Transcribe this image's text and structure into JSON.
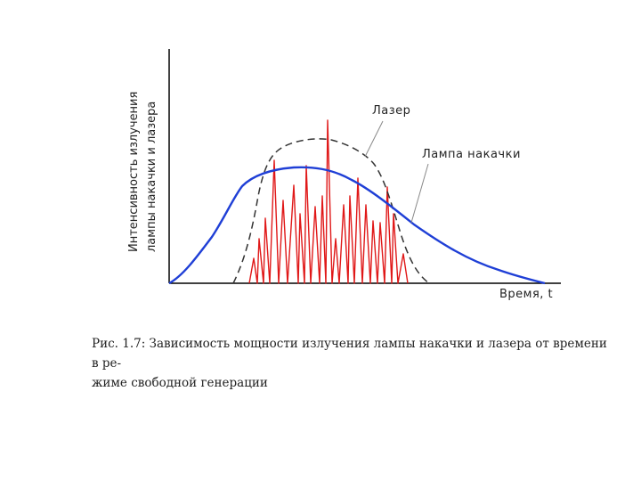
{
  "axes": {
    "ylabel_line1": "Интенсивность излучения",
    "ylabel_line2": "лампы накачки и лазера",
    "xlabel": "Время, t"
  },
  "annotations": {
    "laser": "Лазер",
    "lamp": "Лампа накачки"
  },
  "caption": {
    "line1": "Рис. 1.7: Зависимость мощности излучения лампы накачки и лазера от времени в ре-",
    "line2": "жиме свободной генерации"
  },
  "colors": {
    "axis": "#000000",
    "lamp_curve": "#1f3fd6",
    "laser_spikes": "#e01818",
    "envelope": "#333333"
  }
}
